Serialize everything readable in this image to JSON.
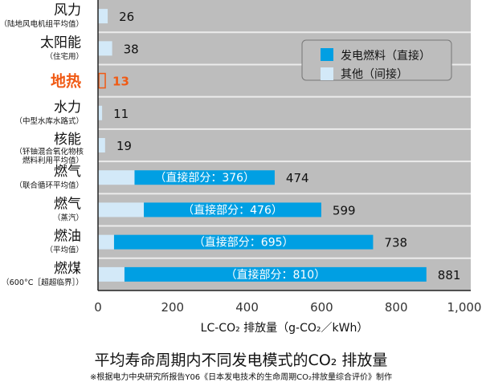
{
  "chart_data": {
    "type": "bar",
    "orientation": "horizontal",
    "stacked": true,
    "title": "平均寿命周期内不同发电模式的CO₂ 排放量",
    "note": "※根据电力中央研究所报告Y06《日本发电技术的生命周期CO₂排放量综合评价》制作",
    "xlabel": "LC-CO₂ 排放量（g-CO₂／kWh）",
    "xlim": [
      0,
      1000
    ],
    "xticks": [
      "0",
      "200",
      "400",
      "600",
      "800",
      "1,000"
    ],
    "grid": false,
    "legend_placement": "top-right",
    "categories": [
      {
        "name": "风力",
        "sub": "（陆地风电机组平均值）"
      },
      {
        "name": "太阳能",
        "sub": "（住宅用）"
      },
      {
        "name": "地热",
        "sub": "",
        "highlight": true
      },
      {
        "name": "水力",
        "sub": "（中型水库水路式）"
      },
      {
        "name": "核能",
        "sub": "（钚铀混合氧化物核燃料利用平均值）"
      },
      {
        "name": "燃气",
        "sub": "（联合循环平均值）"
      },
      {
        "name": "燃气",
        "sub": "（蒸汽）"
      },
      {
        "name": "燃油",
        "sub": "（平均值）"
      },
      {
        "name": "燃煤",
        "sub": "（600°C［超超临界］）"
      }
    ],
    "totals": [
      26,
      38,
      13,
      11,
      19,
      474,
      599,
      738,
      881
    ],
    "series": [
      {
        "name": "发电燃料（直接）",
        "color": "#009fe3",
        "values": [
          0,
          0,
          0,
          0,
          0,
          376,
          476,
          695,
          810
        ]
      },
      {
        "name": "其他（间接）",
        "color": "#d3e9f8",
        "values": [
          26,
          38,
          13,
          11,
          19,
          98,
          123,
          43,
          71
        ]
      }
    ],
    "direct_label_format": "（直接部分：{v}）",
    "highlight_color": "#f05a14"
  }
}
